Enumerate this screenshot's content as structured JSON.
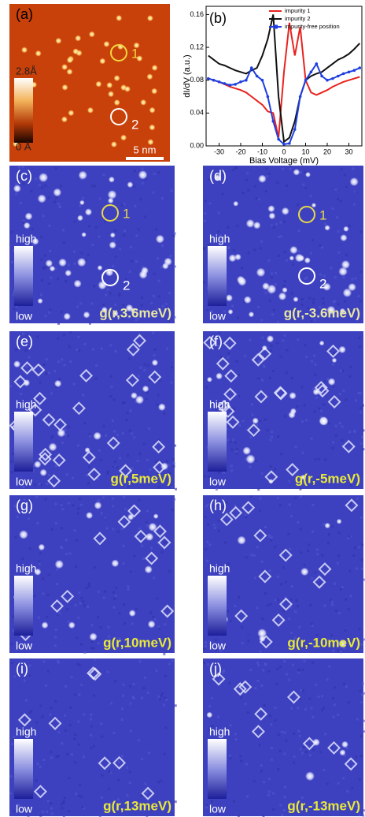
{
  "panels": [
    {
      "label": "(a)",
      "colorbar": [
        "2.8Å",
        "0 Å"
      ],
      "markers": [
        "1",
        "2"
      ],
      "scale_bar": "5 nm"
    },
    {
      "label": "(c)",
      "colorbar": [
        "high",
        "low"
      ],
      "markers": [
        "1",
        "2"
      ],
      "caption": "g(r,3.6meV)"
    },
    {
      "label": "(d)",
      "colorbar": [
        "high",
        "low"
      ],
      "markers": [
        "1",
        "2"
      ],
      "caption": "g(r,-3.6meV)"
    },
    {
      "label": "(e)",
      "colorbar": [
        "high",
        "low"
      ],
      "caption": "g(r,5meV)"
    },
    {
      "label": "(f)",
      "colorbar": [
        "high",
        "low"
      ],
      "caption": "g(r,-5meV)"
    },
    {
      "label": "(g)",
      "colorbar": [
        "high",
        "low"
      ],
      "caption": "g(r,10meV)"
    },
    {
      "label": "(h)",
      "colorbar": [
        "high",
        "low"
      ],
      "caption": "g(r,-10meV)"
    },
    {
      "label": "(i)",
      "colorbar": [
        "high",
        "low"
      ],
      "caption": "g(r,13meV)"
    },
    {
      "label": "(j)",
      "colorbar": [
        "high",
        "low"
      ],
      "caption": "g(r,-13meV)"
    }
  ],
  "chart_data": {
    "type": "line",
    "panel_label": "(b)",
    "x_label": "Bias Voltage (mV)",
    "y_label": "dI/dV (a.u.)",
    "x": [
      -35,
      -32.5,
      -30,
      -27.5,
      -25,
      -22.5,
      -20,
      -17.5,
      -15,
      -12.5,
      -10,
      -7.5,
      -5,
      -2.5,
      0,
      2.5,
      5,
      7.5,
      10,
      12.5,
      15,
      17.5,
      20,
      22.5,
      25,
      27.5,
      30,
      32.5,
      35
    ],
    "series": [
      {
        "name": "impurity 1",
        "color": "#e8231f",
        "values": [
          0.082,
          0.08,
          0.078,
          0.075,
          0.072,
          0.07,
          0.068,
          0.065,
          0.06,
          0.055,
          0.05,
          0.042,
          0.04,
          0.01,
          0.09,
          0.15,
          0.11,
          0.145,
          0.08,
          0.065,
          0.062,
          0.065,
          0.068,
          0.072,
          0.075,
          0.078,
          0.08,
          0.082,
          0.084
        ]
      },
      {
        "name": "impurity 2",
        "color": "#111111",
        "values": [
          0.11,
          0.105,
          0.1,
          0.098,
          0.095,
          0.092,
          0.09,
          0.088,
          0.092,
          0.095,
          0.11,
          0.13,
          0.16,
          0.06,
          0.005,
          0.01,
          0.03,
          0.06,
          0.08,
          0.085,
          0.088,
          0.09,
          0.095,
          0.1,
          0.105,
          0.108,
          0.112,
          0.118,
          0.125
        ]
      },
      {
        "name": "impurity-free position",
        "color": "#1f3fe0",
        "values": [
          0.082,
          0.08,
          0.078,
          0.076,
          0.074,
          0.075,
          0.078,
          0.08,
          0.095,
          0.085,
          0.08,
          0.06,
          0.03,
          0.008,
          0.002,
          0.003,
          0.02,
          0.06,
          0.08,
          0.09,
          0.1,
          0.085,
          0.08,
          0.082,
          0.085,
          0.088,
          0.09,
          0.092,
          0.095
        ]
      }
    ],
    "xlim": [
      -36,
      36
    ],
    "xticks": [
      -30,
      -20,
      -10,
      0,
      10,
      20,
      30
    ],
    "ylim": [
      0,
      0.17
    ],
    "yticks": [
      {
        "value": 0,
        "label": "0.00"
      },
      0.04,
      0.08,
      0.12,
      0.16
    ],
    "legend": "upper-right"
  }
}
